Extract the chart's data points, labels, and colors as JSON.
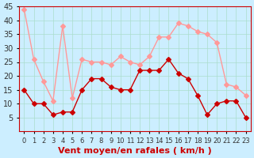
{
  "xlabel": "Vent moyen/en rafales ( km/h )",
  "ylabel": "",
  "background_color": "#cceeff",
  "grid_color": "#aaddcc",
  "x_values": [
    0,
    1,
    2,
    3,
    4,
    5,
    6,
    7,
    8,
    9,
    10,
    11,
    12,
    13,
    14,
    15,
    16,
    17,
    18,
    19,
    20,
    21,
    22,
    23
  ],
  "mean_values": [
    15,
    10,
    10,
    6,
    7,
    7,
    15,
    19,
    19,
    16,
    15,
    15,
    22,
    22,
    22,
    26,
    21,
    19,
    13,
    6,
    10,
    11,
    11,
    5
  ],
  "gust_values": [
    44,
    26,
    18,
    11,
    38,
    12,
    26,
    25,
    25,
    24,
    27,
    25,
    24,
    27,
    34,
    34,
    39,
    38,
    36,
    35,
    32,
    17,
    16,
    13
  ],
  "mean_color": "#cc0000",
  "gust_color": "#ff9999",
  "ylim_min": 0,
  "ylim_max": 45,
  "yticks": [
    5,
    10,
    15,
    20,
    25,
    30,
    35,
    40,
    45
  ],
  "marker_size": 3,
  "linewidth": 1.0,
  "xlabel_fontsize": 8,
  "tick_fontsize": 7
}
